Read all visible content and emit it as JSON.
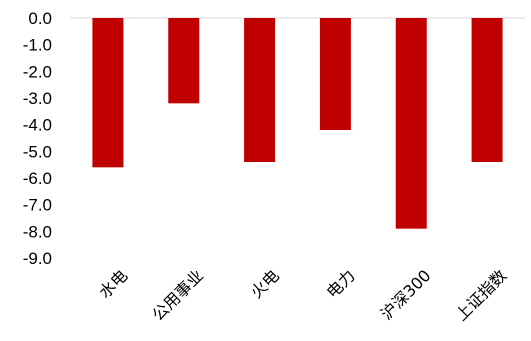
{
  "chart_data": {
    "type": "bar",
    "categories": [
      "水电",
      "公用事业",
      "火电",
      "电力",
      "沪深300",
      "上证指数"
    ],
    "values": [
      -5.6,
      -3.2,
      -5.4,
      -4.2,
      -7.9,
      -5.4
    ],
    "ylim": [
      -9.0,
      0.0
    ],
    "yticks": [
      "0.0",
      "-1.0",
      "-2.0",
      "-3.0",
      "-4.0",
      "-5.0",
      "-6.0",
      "-7.0",
      "-8.0",
      "-9.0"
    ],
    "bar_color": "#C00000",
    "grid": false,
    "legend": "none"
  }
}
